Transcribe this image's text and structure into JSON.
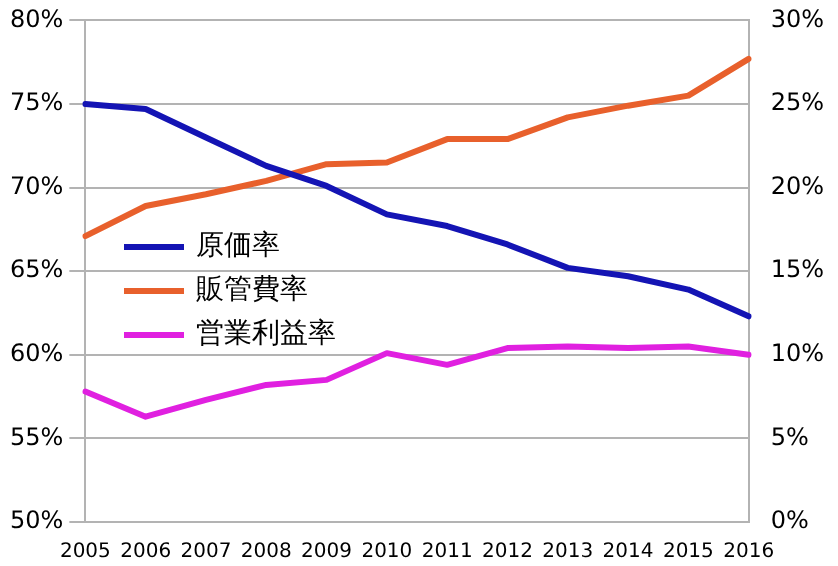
{
  "chart_data": {
    "type": "line",
    "categories": [
      "2005",
      "2006",
      "2007",
      "2008",
      "2009",
      "2010",
      "2011",
      "2012",
      "2013",
      "2014",
      "2015",
      "2016"
    ],
    "series": [
      {
        "name": "原価率",
        "color": "#1414b4",
        "values": [
          75.0,
          74.7,
          73.0,
          71.3,
          70.1,
          68.4,
          67.7,
          66.6,
          65.2,
          64.7,
          63.9,
          62.3
        ]
      },
      {
        "name": "販管費率",
        "color": "#e8602c",
        "axis": "y2",
        "values": [
          17.1,
          18.9,
          19.6,
          20.4,
          21.4,
          21.5,
          22.9,
          22.9,
          24.2,
          24.9,
          25.5,
          27.7
        ]
      },
      {
        "name": "営業利益率",
        "color": "#e020e0",
        "axis": "y2",
        "values": [
          7.8,
          6.3,
          7.3,
          8.2,
          8.5,
          10.1,
          9.4,
          10.4,
          10.5,
          10.4,
          10.5,
          10.0
        ]
      }
    ],
    "ylim": [
      50,
      80
    ],
    "yticks": [
      {
        "value": 50,
        "label": "50%"
      },
      {
        "value": 55,
        "label": "55%"
      },
      {
        "value": 60,
        "label": "60%"
      },
      {
        "value": 65,
        "label": "65%"
      },
      {
        "value": 70,
        "label": "70%"
      },
      {
        "value": 75,
        "label": "75%"
      },
      {
        "value": 80,
        "label": "80%"
      }
    ],
    "y2lim": [
      0,
      30
    ],
    "y2ticks": [
      {
        "value": 0,
        "label": "0%"
      },
      {
        "value": 5,
        "label": "5%"
      },
      {
        "value": 10,
        "label": "10%"
      },
      {
        "value": 15,
        "label": "15%"
      },
      {
        "value": 20,
        "label": "20%"
      },
      {
        "value": 25,
        "label": "25%"
      },
      {
        "value": 30,
        "label": "30%"
      }
    ],
    "grid": "y",
    "legend": "left",
    "marker": "none",
    "line_style": "solid"
  }
}
